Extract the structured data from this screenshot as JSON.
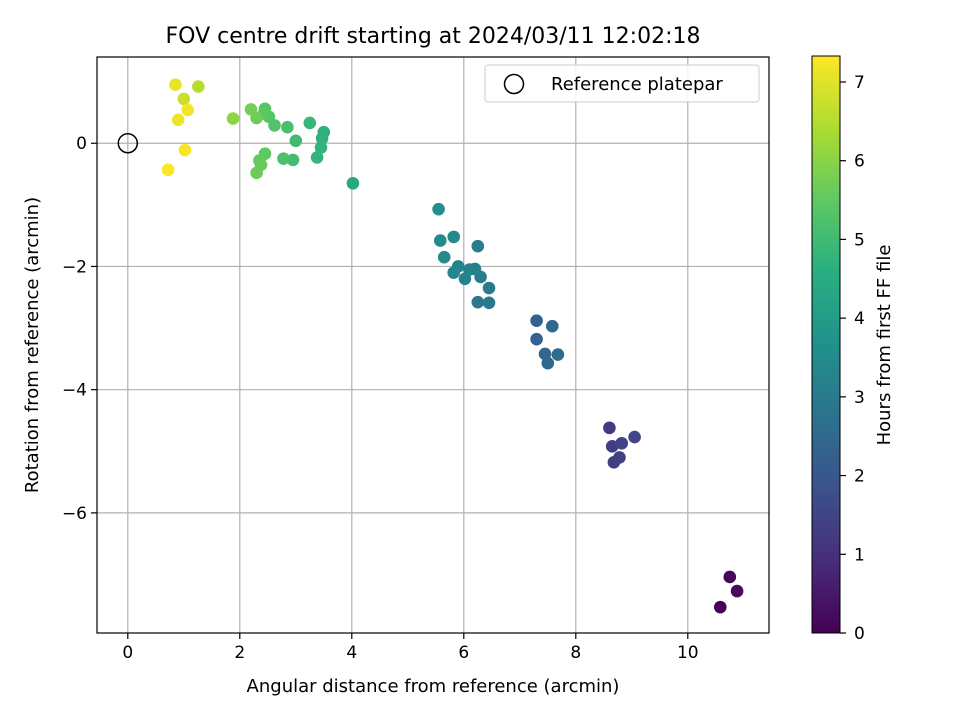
{
  "chart_data": {
    "type": "scatter",
    "title": "FOV centre drift starting at 2024/03/11 12:02:18",
    "xlabel": "Angular distance from reference (arcmin)",
    "ylabel": "Rotation from reference (arcmin)",
    "xlim": [
      -0.55,
      11.45
    ],
    "ylim": [
      -7.95,
      1.4
    ],
    "xticks": [
      0,
      2,
      4,
      6,
      8,
      10
    ],
    "xtick_labels": [
      "0",
      "2",
      "4",
      "6",
      "8",
      "10"
    ],
    "yticks": [
      -6,
      -4,
      -2,
      0
    ],
    "ytick_labels": [
      "−6",
      "−4",
      "−2",
      "0"
    ],
    "grid": true,
    "legend": {
      "position": "top-right",
      "label": "Reference platepar"
    },
    "reference_point": {
      "x": 0,
      "y": 0
    },
    "colorbar": {
      "label": "Hours from first FF file",
      "min": 0,
      "max": 7.33,
      "colormap": "viridis",
      "ticks": [
        0,
        1,
        2,
        3,
        4,
        5,
        6,
        7
      ],
      "tick_labels": [
        "0",
        "1",
        "2",
        "3",
        "4",
        "5",
        "6",
        "7"
      ]
    },
    "points": [
      {
        "x": 10.58,
        "y": -7.53,
        "c": 0.05
      },
      {
        "x": 10.75,
        "y": -7.04,
        "c": 0.12
      },
      {
        "x": 10.88,
        "y": -7.27,
        "c": 0.2
      },
      {
        "x": 8.6,
        "y": -4.62,
        "c": 1.25
      },
      {
        "x": 8.65,
        "y": -4.92,
        "c": 1.3
      },
      {
        "x": 8.68,
        "y": -5.18,
        "c": 1.35
      },
      {
        "x": 8.78,
        "y": -5.1,
        "c": 1.4
      },
      {
        "x": 8.82,
        "y": -4.87,
        "c": 1.45
      },
      {
        "x": 9.05,
        "y": -4.77,
        "c": 1.5
      },
      {
        "x": 7.3,
        "y": -2.88,
        "c": 2.3
      },
      {
        "x": 7.3,
        "y": -3.18,
        "c": 2.35
      },
      {
        "x": 7.45,
        "y": -3.42,
        "c": 2.4
      },
      {
        "x": 7.5,
        "y": -3.57,
        "c": 2.45
      },
      {
        "x": 7.58,
        "y": -2.97,
        "c": 2.5
      },
      {
        "x": 7.68,
        "y": -3.43,
        "c": 2.55
      },
      {
        "x": 6.25,
        "y": -2.58,
        "c": 2.9
      },
      {
        "x": 6.45,
        "y": -2.59,
        "c": 2.95
      },
      {
        "x": 6.45,
        "y": -2.35,
        "c": 3.0
      },
      {
        "x": 6.3,
        "y": -2.17,
        "c": 3.05
      },
      {
        "x": 6.25,
        "y": -1.67,
        "c": 3.1
      },
      {
        "x": 6.2,
        "y": -2.04,
        "c": 3.15
      },
      {
        "x": 6.1,
        "y": -2.05,
        "c": 3.2
      },
      {
        "x": 6.02,
        "y": -2.2,
        "c": 3.25
      },
      {
        "x": 5.9,
        "y": -2.0,
        "c": 3.3
      },
      {
        "x": 5.82,
        "y": -2.1,
        "c": 3.35
      },
      {
        "x": 5.82,
        "y": -1.52,
        "c": 3.4
      },
      {
        "x": 5.65,
        "y": -1.85,
        "c": 3.45
      },
      {
        "x": 5.58,
        "y": -1.58,
        "c": 3.5
      },
      {
        "x": 5.55,
        "y": -1.07,
        "c": 3.6
      },
      {
        "x": 4.02,
        "y": -0.65,
        "c": 4.4
      },
      {
        "x": 3.5,
        "y": 0.18,
        "c": 4.65
      },
      {
        "x": 3.47,
        "y": 0.08,
        "c": 4.7
      },
      {
        "x": 3.45,
        "y": -0.07,
        "c": 4.75
      },
      {
        "x": 3.38,
        "y": -0.23,
        "c": 4.8
      },
      {
        "x": 3.25,
        "y": 0.33,
        "c": 4.85
      },
      {
        "x": 3.0,
        "y": 0.04,
        "c": 5.0
      },
      {
        "x": 2.95,
        "y": -0.27,
        "c": 5.05
      },
      {
        "x": 2.85,
        "y": 0.26,
        "c": 5.15
      },
      {
        "x": 2.78,
        "y": -0.25,
        "c": 5.2
      },
      {
        "x": 2.62,
        "y": 0.29,
        "c": 5.3
      },
      {
        "x": 2.52,
        "y": 0.43,
        "c": 5.35
      },
      {
        "x": 2.45,
        "y": 0.56,
        "c": 5.4
      },
      {
        "x": 2.43,
        "y": 0.48,
        "c": 5.45
      },
      {
        "x": 2.45,
        "y": -0.17,
        "c": 5.5
      },
      {
        "x": 2.35,
        "y": -0.28,
        "c": 5.55
      },
      {
        "x": 2.38,
        "y": -0.35,
        "c": 5.6
      },
      {
        "x": 2.3,
        "y": -0.48,
        "c": 5.65
      },
      {
        "x": 2.3,
        "y": 0.41,
        "c": 5.7
      },
      {
        "x": 2.2,
        "y": 0.55,
        "c": 5.75
      },
      {
        "x": 1.88,
        "y": 0.4,
        "c": 6.05
      },
      {
        "x": 1.26,
        "y": 0.92,
        "c": 6.5
      },
      {
        "x": 1.0,
        "y": 0.72,
        "c": 6.75
      },
      {
        "x": 0.85,
        "y": 0.95,
        "c": 7.1
      },
      {
        "x": 0.9,
        "y": 0.38,
        "c": 7.15
      },
      {
        "x": 1.07,
        "y": 0.54,
        "c": 7.2
      },
      {
        "x": 1.02,
        "y": -0.11,
        "c": 7.25
      },
      {
        "x": 0.72,
        "y": -0.43,
        "c": 7.3
      }
    ]
  }
}
